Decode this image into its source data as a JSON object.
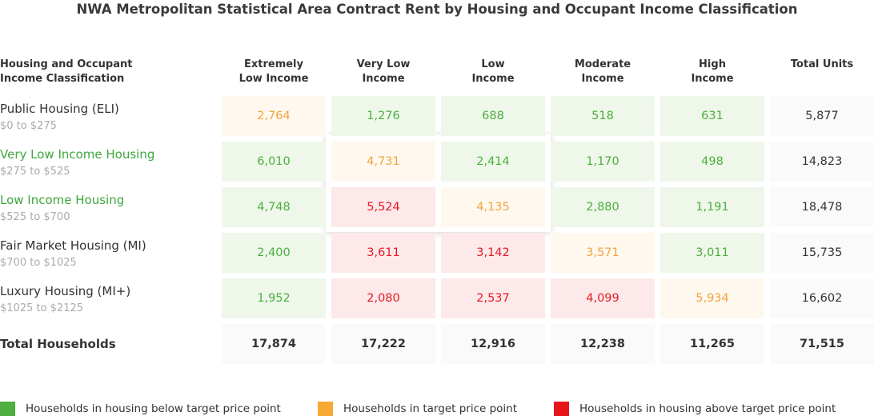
{
  "chart_data": {
    "type": "table",
    "title": "NWA Metropolitan Statistical Area Contract Rent by Housing and Occupant Income Classification",
    "header": {
      "first": [
        "Housing and Occupant",
        "Income Classification"
      ],
      "columns": [
        [
          "Extremely",
          "Low Income"
        ],
        [
          "Very Low",
          "Income"
        ],
        [
          "Low",
          "Income"
        ],
        [
          "Moderate",
          "Income"
        ],
        [
          "High",
          "Income"
        ],
        [
          "Total Units",
          ""
        ]
      ]
    },
    "rows": [
      {
        "name": "Public Housing (ELI)",
        "range": "$0 to $275",
        "values": [
          "2,764",
          "1,276",
          "688",
          "518",
          "631"
        ],
        "status": [
          "orange",
          "green",
          "green",
          "green",
          "green"
        ],
        "total": "5,877"
      },
      {
        "name": "Very Low Income Housing",
        "range": "$275 to $525",
        "values": [
          "6,010",
          "4,731",
          "2,414",
          "1,170",
          "498"
        ],
        "status": [
          "green",
          "orange",
          "green",
          "green",
          "green"
        ],
        "total": "14,823"
      },
      {
        "name": "Low Income Housing",
        "range": "$525 to $700",
        "values": [
          "4,748",
          "5,524",
          "4,135",
          "2,880",
          "1,191"
        ],
        "status": [
          "green",
          "red",
          "orange",
          "green",
          "green"
        ],
        "total": "18,478"
      },
      {
        "name": "Fair Market Housing (MI)",
        "range": "$700 to $1025",
        "values": [
          "2,400",
          "3,611",
          "3,142",
          "3,571",
          "3,011"
        ],
        "status": [
          "green",
          "red",
          "red",
          "orange",
          "green"
        ],
        "total": "15,735"
      },
      {
        "name": "Luxury Housing (MI+)",
        "range": "$1025 to $2125",
        "values": [
          "1,952",
          "2,080",
          "2,537",
          "4,099",
          "5,934"
        ],
        "status": [
          "green",
          "red",
          "red",
          "red",
          "orange"
        ],
        "total": "16,602"
      }
    ],
    "totals": {
      "label": "Total Households",
      "values": [
        "17,874",
        "17,222",
        "12,916",
        "12,238",
        "11,265",
        "71,515"
      ]
    },
    "legend": [
      {
        "label": "Households in housing below target price point",
        "color": "#4caf3f"
      },
      {
        "label": "Households in target price point",
        "color": "#f7a934"
      },
      {
        "label": "Households in housing above target price point",
        "color": "#e8141b"
      }
    ]
  }
}
